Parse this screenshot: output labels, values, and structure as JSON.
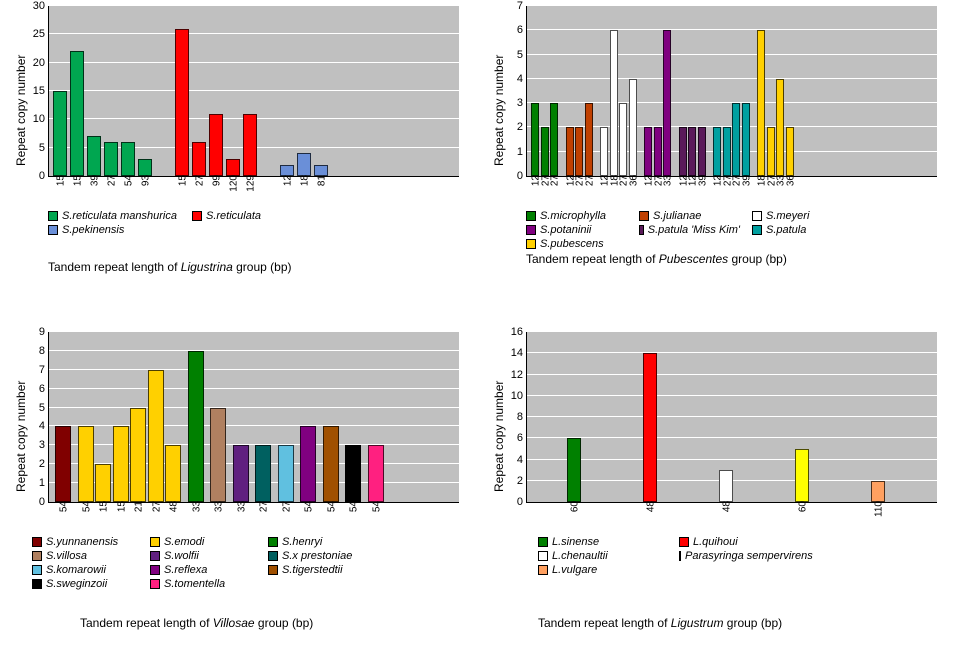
{
  "panels": [
    {
      "id": "ligustrina",
      "ylabel": "Repeat copy number",
      "caption_pre": "Tandem repeat  length of ",
      "caption_it": "Ligustrina",
      "caption_post": " group (bp)",
      "ymin": 0,
      "ymax": 30,
      "ytick": 5,
      "plot_bg": "#c0c0c0",
      "series": [
        {
          "name": "S.reticulata manshurica",
          "color": "#00a650",
          "bars": [
            {
              "x": "15",
              "y": 15
            },
            {
              "x": "15",
              "y": 22
            },
            {
              "x": "39",
              "y": 7
            },
            {
              "x": "27",
              "y": 6
            },
            {
              "x": "54",
              "y": 6
            },
            {
              "x": "93",
              "y": 3
            }
          ]
        },
        {
          "name": "S.reticulata",
          "color": "#ff0000",
          "bars": [
            {
              "x": "15",
              "y": 26
            },
            {
              "x": "27",
              "y": 6
            },
            {
              "x": "99",
              "y": 11
            },
            {
              "x": "120",
              "y": 3
            },
            {
              "x": "129",
              "y": 11
            }
          ]
        },
        {
          "name": "S.pekinensis",
          "color": "#6a8fd8",
          "bars": [
            {
              "x": "12",
              "y": 2
            },
            {
              "x": "18",
              "y": 4
            },
            {
              "x": "81",
              "y": 2
            }
          ]
        }
      ]
    },
    {
      "id": "pubescentes",
      "ylabel": "Repeat copy number",
      "caption_pre": "Tandem repeat  length of ",
      "caption_it": "Pubescentes",
      "caption_post": " group (bp)",
      "ymin": 0,
      "ymax": 7,
      "ytick": 1,
      "plot_bg": "#c0c0c0",
      "series": [
        {
          "name": "S.microphylla",
          "color": "#008000",
          "bars": [
            {
              "x": "12",
              "y": 3
            },
            {
              "x": "27",
              "y": 2
            },
            {
              "x": "27",
              "y": 3
            }
          ]
        },
        {
          "name": "S.julianae",
          "color": "#c04000",
          "bars": [
            {
              "x": "12",
              "y": 2
            },
            {
              "x": "27",
              "y": 2
            },
            {
              "x": "27",
              "y": 3
            }
          ]
        },
        {
          "name": "S.meyeri",
          "color": "#ffffff",
          "bars": [
            {
              "x": "12",
              "y": 2
            },
            {
              "x": "18",
              "y": 6
            },
            {
              "x": "27",
              "y": 3
            },
            {
              "x": "36",
              "y": 4
            }
          ]
        },
        {
          "name": "S.potaninii",
          "color": "#800080",
          "bars": [
            {
              "x": "12",
              "y": 2
            },
            {
              "x": "27",
              "y": 2
            },
            {
              "x": "33",
              "y": 6
            }
          ]
        },
        {
          "name": "S.patula 'Miss Kim'",
          "color": "#5a1a5a",
          "bars": [
            {
              "x": "12",
              "y": 2
            },
            {
              "x": "12",
              "y": 2
            },
            {
              "x": "39",
              "y": 2
            }
          ]
        },
        {
          "name": "S.patula",
          "color": "#00a0a0",
          "bars": [
            {
              "x": "12",
              "y": 2
            },
            {
              "x": "27",
              "y": 2
            },
            {
              "x": "27",
              "y": 3
            },
            {
              "x": "39",
              "y": 3
            }
          ]
        },
        {
          "name": "S.pubescens",
          "color": "#ffd000",
          "bars": [
            {
              "x": "18",
              "y": 6
            },
            {
              "x": "27",
              "y": 2
            },
            {
              "x": "33",
              "y": 4
            },
            {
              "x": "36",
              "y": 2
            }
          ]
        }
      ]
    },
    {
      "id": "villosae",
      "ylabel": "Repeat copy number",
      "caption_pre": "Tandem repeat  length of ",
      "caption_it": "Villosae",
      "caption_post": " group (bp)",
      "ymin": 0,
      "ymax": 9,
      "ytick": 1,
      "plot_bg": "#c0c0c0",
      "series": [
        {
          "name": "S.yunnanensis",
          "color": "#800000",
          "bars": [
            {
              "x": "54",
              "y": 4
            }
          ]
        },
        {
          "name": "S.emodi",
          "color": "#ffd000",
          "bars": [
            {
              "x": "54",
              "y": 4
            },
            {
              "x": "15",
              "y": 2
            },
            {
              "x": "15",
              "y": 4
            },
            {
              "x": "21",
              "y": 5
            },
            {
              "x": "27",
              "y": 7
            },
            {
              "x": "48",
              "y": 3
            }
          ]
        },
        {
          "name": "S.henryi",
          "color": "#008000",
          "bars": [
            {
              "x": "33",
              "y": 8
            }
          ]
        },
        {
          "name": "S.villosa",
          "color": "#b08060",
          "bars": [
            {
              "x": "33",
              "y": 5
            }
          ]
        },
        {
          "name": "S.wolfii",
          "color": "#602080",
          "bars": [
            {
              "x": "33",
              "y": 3
            }
          ]
        },
        {
          "name": "S.x prestoniae",
          "color": "#006060",
          "bars": [
            {
              "x": "27",
              "y": 3
            }
          ]
        },
        {
          "name": "S.komarowii",
          "color": "#60c0e0",
          "bars": [
            {
              "x": "27",
              "y": 3
            }
          ]
        },
        {
          "name": "S.reflexa",
          "color": "#800080",
          "bars": [
            {
              "x": "54",
              "y": 4
            }
          ]
        },
        {
          "name": "S.tigerstedtii",
          "color": "#a05000",
          "bars": [
            {
              "x": "54",
              "y": 4
            }
          ]
        },
        {
          "name": "S.sweginzoii",
          "color": "#000000",
          "bars": [
            {
              "x": "54",
              "y": 3
            }
          ]
        },
        {
          "name": "S.tomentella",
          "color": "#ff2080",
          "bars": [
            {
              "x": "54",
              "y": 3
            }
          ]
        }
      ]
    },
    {
      "id": "ligustrum",
      "ylabel": "Repeat copy number",
      "caption_pre": "Tandem repeat  length of ",
      "caption_it": "Ligustrum",
      "caption_post": " group (bp)",
      "ymin": 0,
      "ymax": 16,
      "ytick": 2,
      "plot_bg": "#c0c0c0",
      "series": [
        {
          "name": "L.sinense",
          "color": "#008000",
          "bars": [
            {
              "x": "60",
              "y": 6
            }
          ]
        },
        {
          "name": "L.quihoui",
          "color": "#ff0000",
          "bars": [
            {
              "x": "48",
              "y": 14
            }
          ]
        },
        {
          "name": "L.chenaultii",
          "color": "#ffffff",
          "bars": [
            {
              "x": "48",
              "y": 3
            }
          ]
        },
        {
          "name": "Parasyringa sempervirens",
          "color": "#ffff00",
          "bars": [
            {
              "x": "60",
              "y": 5
            }
          ]
        },
        {
          "name": "L.vulgare",
          "color": "#ffa060",
          "bars": [
            {
              "x": "110",
              "y": 2
            }
          ]
        }
      ]
    }
  ]
}
